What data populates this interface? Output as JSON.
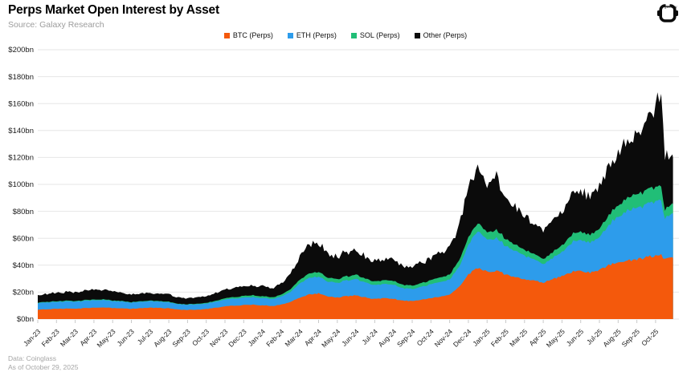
{
  "header": {
    "title": "Perps Market Open Interest by Asset",
    "subtitle": "Source: Galaxy Research"
  },
  "logo": {
    "label": "galaxy"
  },
  "footer": {
    "line1": "Data: Coinglass",
    "line2": "As of October 29, 2025"
  },
  "chart_data": {
    "type": "area",
    "stacked": true,
    "title": "Perps Market Open Interest by Asset",
    "unit": "$bn",
    "ylim": [
      0,
      200
    ],
    "ytick_step": 20,
    "ytick_labels": [
      "$0bn",
      "$20bn",
      "$40bn",
      "$60bn",
      "$80bn",
      "$100bn",
      "$120bn",
      "$140bn",
      "$160bn",
      "$180bn",
      "$200bn"
    ],
    "x_labels": [
      "Jan-23",
      "Feb-23",
      "Mar-23",
      "Apr-23",
      "May-23",
      "Jun-23",
      "Jul-23",
      "Aug-23",
      "Sep-23",
      "Oct-23",
      "Nov-23",
      "Dec-23",
      "Jan-24",
      "Feb-24",
      "Mar-24",
      "Apr-24",
      "May-24",
      "Jun-24",
      "Jul-24",
      "Aug-24",
      "Sep-24",
      "Oct-24",
      "Nov-24",
      "Dec-24",
      "Jan-25",
      "Feb-25",
      "Mar-25",
      "Apr-25",
      "May-25",
      "Jun-25",
      "Jul-25",
      "Aug-25",
      "Sep-25",
      "Oct-25"
    ],
    "x_unit": "months since Jan-2023 (semi-monthly samples, values in $bn)",
    "x": [
      0,
      0.5,
      1,
      1.5,
      2,
      2.5,
      3,
      3.5,
      4,
      4.5,
      5,
      5.5,
      6,
      6.5,
      7,
      7.5,
      8,
      8.5,
      9,
      9.5,
      10,
      10.5,
      11,
      11.5,
      12,
      12.5,
      13,
      13.5,
      14,
      14.5,
      15,
      15.5,
      16,
      16.5,
      17,
      17.5,
      18,
      18.5,
      19,
      19.5,
      20,
      20.5,
      21,
      21.5,
      22,
      22.5,
      23,
      23.5,
      24,
      24.5,
      25,
      25.5,
      26,
      26.5,
      27,
      27.5,
      28,
      28.5,
      29,
      29.5,
      30,
      30.5,
      31,
      31.5,
      32,
      32.5,
      33,
      33.3,
      33.5,
      33.7,
      33.93
    ],
    "series": [
      {
        "name": "BTC (Perps)",
        "color": "#F4590C",
        "volatility_hint": 0.025,
        "values": [
          7.0,
          7.3,
          7.6,
          7.8,
          7.6,
          8.2,
          8.4,
          8.8,
          8.2,
          8.0,
          7.6,
          8.0,
          8.4,
          8.2,
          8.0,
          7.0,
          6.8,
          7.0,
          7.4,
          8.4,
          9.4,
          10.0,
          10.4,
          10.8,
          10.2,
          9.8,
          10.6,
          12.5,
          16.0,
          18.5,
          19.0,
          16.5,
          16.0,
          17.0,
          17.5,
          16.0,
          14.8,
          15.6,
          15.0,
          13.8,
          13.5,
          14.5,
          15.6,
          16.8,
          18.0,
          24.0,
          33.0,
          38.0,
          35.0,
          36.0,
          33.0,
          31.5,
          30.0,
          28.5,
          27.0,
          29.5,
          32.0,
          35.0,
          36.0,
          34.5,
          36.5,
          40.0,
          42.0,
          43.5,
          44.0,
          46.0,
          47.5,
          48.0,
          44.0,
          45.5,
          46.0
        ]
      },
      {
        "name": "ETH (Perps)",
        "color": "#2D9CEB",
        "volatility_hint": 0.035,
        "values": [
          5.0,
          5.1,
          5.2,
          5.3,
          5.2,
          5.4,
          5.5,
          5.6,
          5.2,
          5.0,
          4.6,
          4.8,
          4.8,
          4.7,
          4.6,
          4.0,
          3.9,
          4.0,
          4.1,
          4.5,
          5.0,
          5.3,
          5.5,
          5.6,
          5.4,
          5.2,
          5.8,
          7.5,
          10.5,
          12.5,
          12.5,
          11.0,
          10.8,
          11.5,
          12.0,
          11.0,
          10.2,
          10.8,
          10.3,
          9.2,
          9.0,
          9.6,
          10.2,
          10.8,
          11.2,
          15.0,
          22.0,
          27.0,
          24.0,
          24.0,
          21.0,
          19.5,
          17.5,
          16.0,
          14.0,
          15.5,
          18.0,
          21.5,
          23.5,
          22.5,
          24.5,
          30.0,
          34.0,
          37.0,
          38.0,
          40.0,
          40.5,
          41.0,
          30.0,
          31.5,
          32.0
        ]
      },
      {
        "name": "SOL (Perps)",
        "color": "#21BE77",
        "volatility_hint": 0.06,
        "values": [
          0.4,
          0.4,
          0.5,
          0.5,
          0.5,
          0.5,
          0.5,
          0.5,
          0.4,
          0.4,
          0.3,
          0.4,
          0.4,
          0.4,
          0.4,
          0.3,
          0.3,
          0.4,
          0.5,
          0.7,
          0.9,
          1.1,
          1.3,
          1.4,
          1.3,
          1.2,
          1.4,
          2.0,
          2.8,
          3.3,
          3.5,
          2.9,
          2.8,
          3.1,
          3.2,
          2.9,
          2.7,
          2.9,
          2.8,
          2.5,
          2.5,
          2.8,
          3.0,
          3.3,
          3.6,
          4.8,
          5.5,
          6.0,
          5.5,
          6.0,
          5.0,
          4.6,
          4.3,
          4.0,
          3.7,
          4.2,
          5.0,
          6.0,
          6.2,
          5.8,
          6.2,
          7.5,
          8.5,
          9.5,
          10.0,
          11.0,
          10.5,
          10.0,
          6.5,
          7.0,
          7.0
        ]
      },
      {
        "name": "Other (Perps)",
        "color": "#0B0B0B",
        "volatility_hint": 0.13,
        "values": [
          5.5,
          5.8,
          6.0,
          6.5,
          6.2,
          6.6,
          7.0,
          7.5,
          6.4,
          6.0,
          5.4,
          5.6,
          5.8,
          5.6,
          5.5,
          4.6,
          4.4,
          4.6,
          4.8,
          5.6,
          6.3,
          6.8,
          7.0,
          7.4,
          7.3,
          7.0,
          8.0,
          11.0,
          17.0,
          21.0,
          22.0,
          17.5,
          16.5,
          18.5,
          19.5,
          16.6,
          15.0,
          16.0,
          15.5,
          13.5,
          13.4,
          15.0,
          16.6,
          18.0,
          19.5,
          27.0,
          36.0,
          43.0,
          36.0,
          39.0,
          30.0,
          27.5,
          25.5,
          23.0,
          20.5,
          23.0,
          26.0,
          30.0,
          30.5,
          28.5,
          31.0,
          36.0,
          39.0,
          42.0,
          43.0,
          48.0,
          60.0,
          71.0,
          39.5,
          36.0,
          39.0
        ]
      }
    ],
    "legend_position": "top-center",
    "grid": "horizontal",
    "background": "#ffffff",
    "gridline_color": "#e6e6e6"
  }
}
